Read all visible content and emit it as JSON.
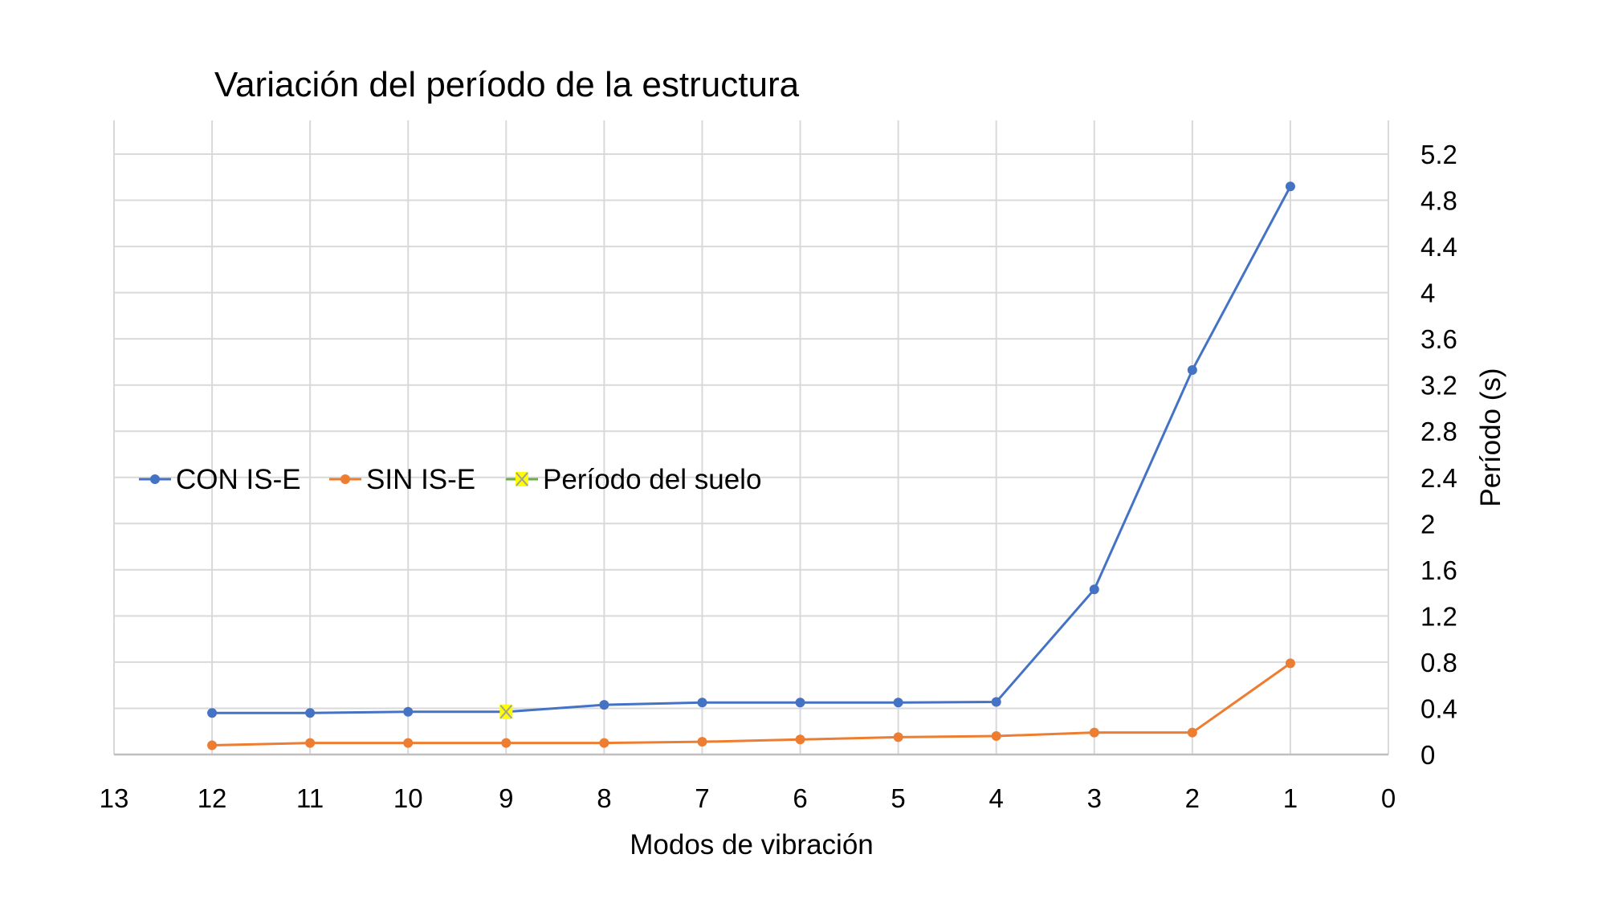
{
  "chart_data": {
    "type": "line",
    "title": "Variación del período de la estructura",
    "xlabel": "Modos de vibración",
    "ylabel": "Período (s)",
    "xlim": [
      13,
      0
    ],
    "x_reversed": true,
    "ylim": [
      0,
      5.2
    ],
    "x_ticks": [
      13,
      12,
      11,
      10,
      9,
      8,
      7,
      6,
      5,
      4,
      3,
      2,
      1,
      0
    ],
    "y_ticks": [
      0,
      0.4,
      0.8,
      1.2,
      1.6,
      2,
      2.4,
      2.8,
      3.2,
      3.6,
      4,
      4.4,
      4.8,
      5.2
    ],
    "y_axis_side": "right",
    "grid": true,
    "legend_position": "center-left",
    "x": [
      12,
      11,
      10,
      9,
      8,
      7,
      6,
      5,
      4,
      3,
      2,
      1
    ],
    "series": [
      {
        "name": "CON IS-E",
        "color": "#4472c4",
        "marker": "circle",
        "values": [
          0.36,
          0.36,
          0.37,
          0.37,
          0.43,
          0.45,
          0.45,
          0.45,
          0.455,
          1.43,
          3.33,
          4.92
        ]
      },
      {
        "name": "SIN IS-E",
        "color": "#ed7d31",
        "marker": "circle",
        "values": [
          0.08,
          0.1,
          0.1,
          0.1,
          0.1,
          0.11,
          0.13,
          0.15,
          0.16,
          0.19,
          0.19,
          0.79
        ]
      },
      {
        "name": "Período del suelo",
        "color": "#ffff00",
        "marker": "x-square",
        "points": [
          {
            "x": 9,
            "y": 0.37
          }
        ]
      }
    ]
  }
}
